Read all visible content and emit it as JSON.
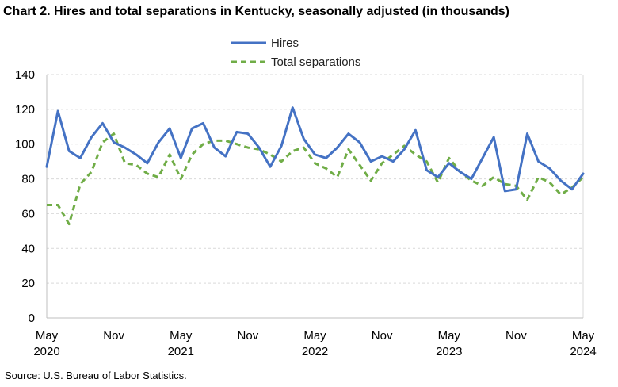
{
  "chart_data": {
    "type": "line",
    "title": "Chart 2. Hires and total separations in Kentucky, seasonally adjusted (in thousands)",
    "source": "Source: U.S. Bureau of Labor Statistics.",
    "xlabel": "",
    "ylabel": "",
    "ylim": [
      0,
      140
    ],
    "yticks": [
      0,
      20,
      40,
      60,
      80,
      100,
      120,
      140
    ],
    "grid": true,
    "legend_position": "top-center",
    "x_start": "2020-05",
    "x_end": "2024-05",
    "x_tick_labels": [
      {
        "month": "May",
        "year": "2020",
        "date": "2020-05"
      },
      {
        "month": "Nov",
        "year": "",
        "date": "2020-11"
      },
      {
        "month": "May",
        "year": "2021",
        "date": "2021-05"
      },
      {
        "month": "Nov",
        "year": "",
        "date": "2021-11"
      },
      {
        "month": "May",
        "year": "2022",
        "date": "2022-05"
      },
      {
        "month": "Nov",
        "year": "",
        "date": "2022-11"
      },
      {
        "month": "May",
        "year": "2023",
        "date": "2023-05"
      },
      {
        "month": "Nov",
        "year": "",
        "date": "2023-11"
      },
      {
        "month": "May",
        "year": "2024",
        "date": "2024-05"
      }
    ],
    "series": [
      {
        "name": "Hires",
        "color": "#4472C4",
        "style": "solid",
        "values": [
          87,
          119,
          96,
          92,
          104,
          112,
          101,
          98,
          94,
          89,
          101,
          109,
          92,
          109,
          112,
          98,
          93,
          107,
          106,
          98,
          87,
          99,
          121,
          103,
          94,
          92,
          98,
          106,
          101,
          90,
          93,
          90,
          97,
          108,
          85,
          81,
          89,
          84,
          80,
          92,
          104,
          73,
          74,
          106,
          90,
          86,
          79,
          74,
          83
        ]
      },
      {
        "name": "Total separations",
        "color": "#70AD47",
        "style": "dashed",
        "values": [
          65,
          65,
          54,
          77,
          84,
          101,
          106,
          89,
          88,
          83,
          81,
          94,
          80,
          94,
          100,
          102,
          102,
          100,
          98,
          97,
          94,
          90,
          96,
          98,
          89,
          86,
          81,
          97,
          88,
          79,
          89,
          94,
          99,
          94,
          90,
          78,
          92,
          84,
          79,
          76,
          81,
          77,
          76,
          68,
          81,
          78,
          71,
          75,
          81
        ]
      }
    ]
  }
}
